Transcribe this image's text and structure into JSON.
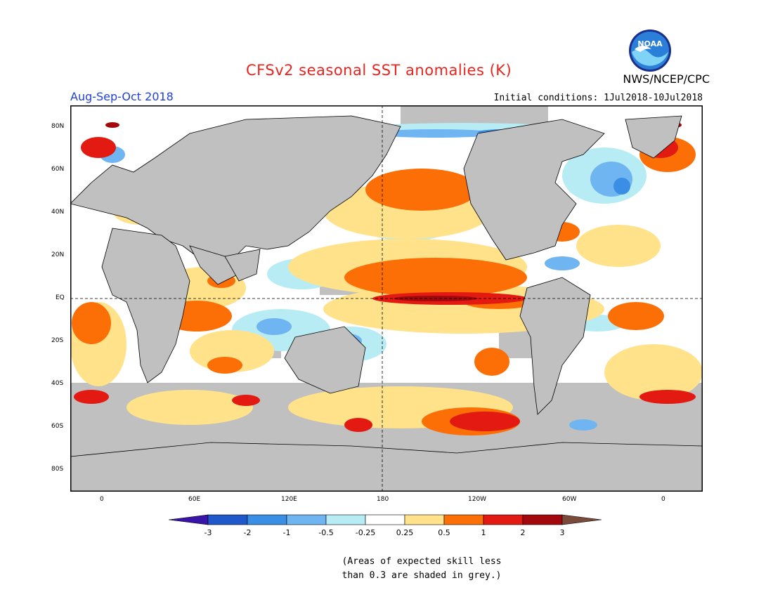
{
  "header": {
    "title": "CFSv2 seasonal SST anomalies (K)",
    "season": "Aug-Sep-Oct 2018",
    "initial_conditions": "Initial conditions: 1Jul2018-10Jul2018",
    "org": "NWS/NCEP/CPC",
    "logo_text": "NOAA"
  },
  "map": {
    "lat_labels": [
      "80N",
      "60N",
      "40N",
      "20N",
      "EQ",
      "20S",
      "40S",
      "60S",
      "80S"
    ],
    "lon_labels": [
      "0",
      "60E",
      "120E",
      "180",
      "120W",
      "60W",
      "0"
    ]
  },
  "colorbar": {
    "labels": [
      "-3",
      "-2",
      "-1",
      "-0.5",
      "-0.25",
      "0.25",
      "0.5",
      "1",
      "2",
      "3"
    ],
    "colors": [
      "#3a14a8",
      "#1f58c9",
      "#3a8ee6",
      "#6eb5f2",
      "#b8ecf5",
      "#ffffff",
      "#ffe28a",
      "#fc6f07",
      "#e21a12",
      "#a3080c",
      "#7a4a3a"
    ]
  },
  "colors": {
    "land": "#c0c0c0",
    "grey_mask": "#c0c0c0",
    "title": "#e8251f",
    "season": "#1f3fd6"
  },
  "note": {
    "line1": "(Areas of expected skill less",
    "line2": "than 0.3 are shaded in grey.)"
  }
}
